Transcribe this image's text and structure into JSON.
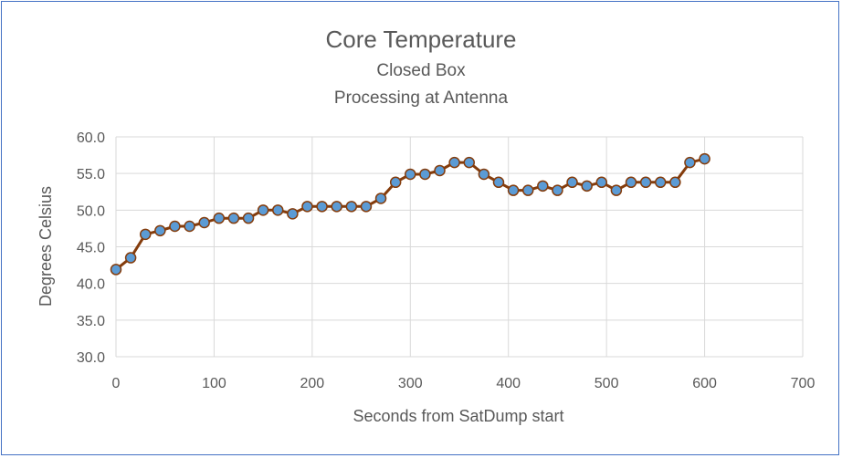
{
  "chart_data": {
    "type": "line",
    "title": "Core Temperature",
    "subtitle_lines": [
      "Closed Box",
      "Processing at Antenna"
    ],
    "xlabel": "Seconds from SatDump start",
    "ylabel": "Degrees Celsius",
    "xlim": [
      0,
      700
    ],
    "ylim": [
      30,
      60
    ],
    "x_ticks": [
      "0",
      "100",
      "200",
      "300",
      "400",
      "500",
      "600",
      "700"
    ],
    "y_ticks": [
      "30.0",
      "35.0",
      "40.0",
      "45.0",
      "50.0",
      "55.0",
      "60.0"
    ],
    "grid": true,
    "legend": "none",
    "colors": {
      "line": "#843c0c",
      "marker_fill": "#5b9bd5",
      "marker_edge": "#843c0c",
      "grid": "#d9d9d9",
      "border": "#4472c4"
    },
    "series": [
      {
        "x": [
          0,
          15,
          30,
          45,
          60,
          75,
          90,
          105,
          120,
          135,
          150,
          165,
          180,
          195,
          210,
          225,
          240,
          255,
          270,
          285,
          300,
          315,
          330,
          345,
          360,
          375,
          390,
          405,
          420,
          435,
          450,
          465,
          480,
          495,
          510,
          525,
          540,
          555,
          570,
          585,
          600
        ],
        "values": [
          41.9,
          43.5,
          46.7,
          47.2,
          47.8,
          47.8,
          48.3,
          48.9,
          48.9,
          48.9,
          50.0,
          50.0,
          49.5,
          50.5,
          50.5,
          50.5,
          50.5,
          50.5,
          51.6,
          53.8,
          54.9,
          54.9,
          55.4,
          56.5,
          56.5,
          54.9,
          53.8,
          52.7,
          52.7,
          53.3,
          52.7,
          53.8,
          53.3,
          53.8,
          52.7,
          53.8,
          53.8,
          53.8,
          53.8,
          56.5,
          57.0
        ]
      }
    ]
  }
}
